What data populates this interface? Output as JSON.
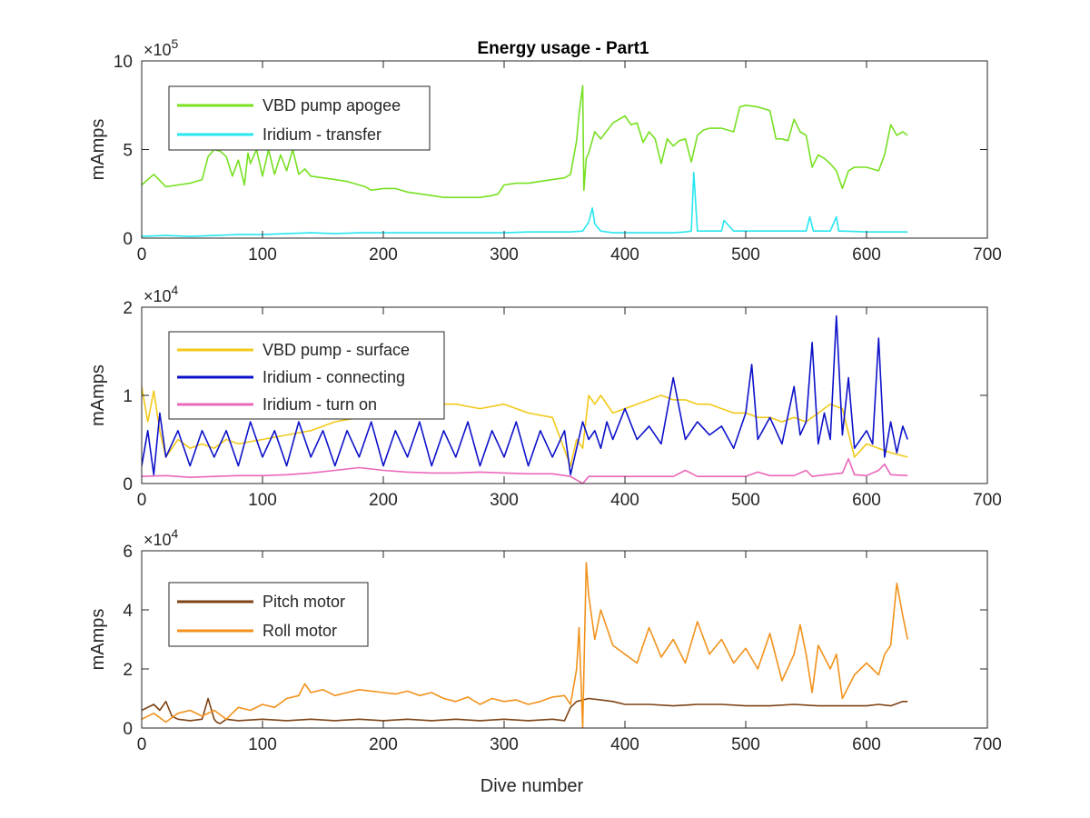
{
  "figure": {
    "title": "Energy usage - Part1"
  },
  "chart_data": [
    {
      "type": "line",
      "title": "Energy usage - Part1",
      "xlabel": "",
      "ylabel": "mAmps",
      "xlim": [
        0,
        700
      ],
      "ylim": [
        0,
        1000000
      ],
      "x_ticks": [
        0,
        100,
        200,
        300,
        400,
        500,
        600,
        700
      ],
      "x_tick_labels": [
        "0",
        "100",
        "200",
        "300",
        "400",
        "500",
        "600",
        "700"
      ],
      "y_ticks": [
        0,
        500000,
        1000000
      ],
      "y_tick_labels": [
        "0",
        "5",
        "10"
      ],
      "y_exponent": {
        "base": "×10",
        "power": "5"
      },
      "grid": false,
      "legend_position": "top-left",
      "series": [
        {
          "name": "VBD pump apogee",
          "color": "#77e021",
          "x": [
            0,
            10,
            20,
            30,
            40,
            50,
            55,
            60,
            65,
            70,
            75,
            80,
            85,
            88,
            90,
            95,
            100,
            105,
            110,
            115,
            120,
            125,
            130,
            135,
            140,
            150,
            160,
            170,
            180,
            185,
            190,
            200,
            210,
            220,
            240,
            250,
            260,
            280,
            290,
            295,
            300,
            310,
            320,
            330,
            340,
            350,
            355,
            360,
            362,
            365,
            366,
            368,
            370,
            375,
            380,
            390,
            400,
            405,
            410,
            415,
            420,
            425,
            430,
            435,
            440,
            445,
            450,
            455,
            460,
            465,
            470,
            480,
            490,
            495,
            500,
            510,
            520,
            525,
            530,
            535,
            540,
            545,
            550,
            555,
            560,
            565,
            570,
            575,
            580,
            585,
            590,
            600,
            610,
            615,
            620,
            625,
            630,
            634
          ],
          "y": [
            300000,
            360000,
            290000,
            300000,
            310000,
            330000,
            460000,
            500000,
            490000,
            460000,
            350000,
            440000,
            300000,
            480000,
            420000,
            500000,
            350000,
            500000,
            360000,
            470000,
            380000,
            500000,
            360000,
            390000,
            350000,
            340000,
            330000,
            320000,
            300000,
            290000,
            270000,
            280000,
            280000,
            260000,
            240000,
            230000,
            230000,
            230000,
            240000,
            250000,
            300000,
            310000,
            310000,
            320000,
            330000,
            340000,
            360000,
            550000,
            700000,
            860000,
            270000,
            450000,
            480000,
            600000,
            560000,
            650000,
            690000,
            640000,
            650000,
            540000,
            600000,
            560000,
            420000,
            560000,
            520000,
            550000,
            560000,
            430000,
            580000,
            610000,
            620000,
            620000,
            600000,
            740000,
            750000,
            740000,
            720000,
            560000,
            560000,
            550000,
            670000,
            600000,
            580000,
            400000,
            470000,
            450000,
            420000,
            380000,
            280000,
            380000,
            400000,
            400000,
            380000,
            470000,
            640000,
            580000,
            600000,
            580000
          ]
        },
        {
          "name": "Iridium - transfer",
          "color": "#27e6f0",
          "x": [
            0,
            20,
            40,
            60,
            80,
            100,
            120,
            140,
            160,
            180,
            200,
            220,
            240,
            260,
            280,
            300,
            320,
            340,
            355,
            365,
            370,
            373,
            375,
            380,
            390,
            400,
            420,
            440,
            450,
            455,
            457,
            460,
            470,
            480,
            482,
            490,
            500,
            520,
            540,
            550,
            553,
            556,
            560,
            570,
            575,
            577,
            580,
            600,
            620,
            634
          ],
          "y": [
            10000,
            15000,
            10000,
            15000,
            20000,
            20000,
            25000,
            30000,
            25000,
            30000,
            30000,
            30000,
            30000,
            30000,
            30000,
            30000,
            35000,
            35000,
            35000,
            40000,
            90000,
            170000,
            80000,
            40000,
            30000,
            30000,
            30000,
            30000,
            35000,
            40000,
            370000,
            40000,
            40000,
            40000,
            100000,
            40000,
            40000,
            40000,
            40000,
            40000,
            120000,
            40000,
            40000,
            40000,
            120000,
            40000,
            40000,
            35000,
            35000,
            35000
          ]
        }
      ]
    },
    {
      "type": "line",
      "title": "",
      "xlabel": "",
      "ylabel": "mAmps",
      "xlim": [
        0,
        700
      ],
      "ylim": [
        0,
        20000
      ],
      "x_ticks": [
        0,
        100,
        200,
        300,
        400,
        500,
        600,
        700
      ],
      "x_tick_labels": [
        "0",
        "100",
        "200",
        "300",
        "400",
        "500",
        "600",
        "700"
      ],
      "y_ticks": [
        0,
        10000,
        20000
      ],
      "y_tick_labels": [
        "0",
        "1",
        "2"
      ],
      "y_exponent": {
        "base": "×10",
        "power": "4"
      },
      "grid": false,
      "legend_position": "top-left",
      "series": [
        {
          "name": "VBD pump - surface",
          "color": "#f2c91a",
          "x": [
            0,
            5,
            10,
            15,
            20,
            30,
            40,
            50,
            60,
            70,
            80,
            100,
            120,
            140,
            160,
            180,
            200,
            220,
            240,
            260,
            280,
            300,
            320,
            340,
            355,
            360,
            365,
            370,
            375,
            380,
            390,
            400,
            410,
            420,
            430,
            440,
            450,
            460,
            470,
            480,
            490,
            500,
            510,
            520,
            530,
            540,
            550,
            560,
            570,
            580,
            590,
            600,
            610,
            620,
            634
          ],
          "y": [
            11000,
            7000,
            10500,
            6000,
            3000,
            5000,
            4000,
            4500,
            4000,
            5000,
            4500,
            5000,
            5500,
            6000,
            7000,
            7500,
            8000,
            8500,
            9000,
            9000,
            8500,
            9000,
            8000,
            7500,
            2000,
            5000,
            4000,
            10000,
            9000,
            10000,
            8000,
            8500,
            9000,
            9500,
            10000,
            9500,
            9500,
            9000,
            9000,
            8500,
            8000,
            8000,
            7500,
            7500,
            7000,
            7500,
            7000,
            8000,
            9000,
            8500,
            3000,
            4500,
            4000,
            3500,
            3000
          ]
        },
        {
          "name": "Iridium - connecting",
          "color": "#0d12c9",
          "x": [
            0,
            5,
            10,
            15,
            20,
            30,
            40,
            50,
            60,
            70,
            80,
            90,
            100,
            110,
            120,
            130,
            140,
            150,
            160,
            170,
            180,
            190,
            200,
            210,
            220,
            230,
            240,
            250,
            260,
            270,
            280,
            290,
            300,
            310,
            320,
            330,
            340,
            350,
            355,
            360,
            365,
            370,
            375,
            380,
            385,
            390,
            400,
            410,
            420,
            430,
            440,
            450,
            460,
            470,
            480,
            490,
            500,
            505,
            510,
            520,
            530,
            540,
            545,
            550,
            555,
            560,
            565,
            570,
            575,
            580,
            585,
            590,
            600,
            605,
            610,
            615,
            620,
            625,
            630,
            634
          ],
          "y": [
            2000,
            6000,
            1000,
            8000,
            3000,
            6000,
            2000,
            6000,
            3000,
            6000,
            2000,
            7000,
            3000,
            6000,
            2000,
            7000,
            3000,
            6000,
            2000,
            6000,
            3000,
            7000,
            2000,
            6000,
            3000,
            7000,
            2000,
            6000,
            3000,
            7000,
            2000,
            6000,
            3000,
            7000,
            2000,
            6000,
            3000,
            6000,
            1000,
            4000,
            7000,
            5000,
            6000,
            4000,
            7000,
            5000,
            8500,
            5000,
            6500,
            4500,
            12000,
            5000,
            7000,
            5500,
            6500,
            4000,
            8000,
            13500,
            5000,
            7500,
            4500,
            11000,
            5500,
            7000,
            16000,
            4500,
            8000,
            5000,
            19000,
            5500,
            12000,
            4000,
            6000,
            4500,
            16500,
            3000,
            7000,
            3500,
            6500,
            5000
          ]
        },
        {
          "name": "Iridium - turn on",
          "color": "#ea67b9",
          "x": [
            0,
            20,
            40,
            60,
            80,
            100,
            120,
            140,
            160,
            180,
            200,
            220,
            240,
            260,
            280,
            300,
            320,
            340,
            355,
            365,
            370,
            400,
            420,
            440,
            450,
            460,
            480,
            500,
            510,
            520,
            540,
            550,
            555,
            560,
            580,
            585,
            590,
            600,
            610,
            615,
            620,
            634
          ],
          "y": [
            800,
            900,
            700,
            800,
            900,
            900,
            1000,
            1200,
            1500,
            1800,
            1500,
            1300,
            1200,
            1200,
            1300,
            1200,
            1100,
            1100,
            800,
            0,
            800,
            800,
            800,
            800,
            1500,
            800,
            800,
            800,
            1300,
            900,
            900,
            1500,
            800,
            900,
            1200,
            2800,
            1000,
            900,
            1500,
            2200,
            1000,
            900
          ]
        }
      ]
    },
    {
      "type": "line",
      "title": "",
      "xlabel": "Dive number",
      "ylabel": "mAmps",
      "xlim": [
        0,
        700
      ],
      "ylim": [
        0,
        60000
      ],
      "x_ticks": [
        0,
        100,
        200,
        300,
        400,
        500,
        600,
        700
      ],
      "x_tick_labels": [
        "0",
        "100",
        "200",
        "300",
        "400",
        "500",
        "600",
        "700"
      ],
      "y_ticks": [
        0,
        20000,
        40000,
        60000
      ],
      "y_tick_labels": [
        "0",
        "2",
        "4",
        "6"
      ],
      "y_exponent": {
        "base": "×10",
        "power": "4"
      },
      "grid": false,
      "legend_position": "top-left",
      "series": [
        {
          "name": "Pitch motor",
          "color": "#7d4214",
          "x": [
            0,
            10,
            15,
            20,
            25,
            30,
            40,
            50,
            55,
            60,
            62,
            65,
            70,
            80,
            100,
            120,
            140,
            160,
            180,
            200,
            220,
            240,
            260,
            280,
            300,
            320,
            340,
            350,
            355,
            360,
            370,
            380,
            390,
            400,
            420,
            440,
            460,
            480,
            500,
            520,
            540,
            560,
            580,
            600,
            610,
            620,
            630,
            634
          ],
          "y": [
            6000,
            8000,
            6000,
            9000,
            4000,
            3000,
            2500,
            3000,
            10000,
            3000,
            2000,
            1500,
            3000,
            2500,
            3000,
            2500,
            3000,
            2500,
            3000,
            2500,
            3000,
            2500,
            3000,
            2500,
            3000,
            2500,
            3000,
            2500,
            7000,
            9000,
            10000,
            9500,
            9000,
            8000,
            8000,
            7500,
            8000,
            8000,
            7500,
            7500,
            8000,
            7500,
            7500,
            7500,
            8000,
            7500,
            9000,
            9000
          ]
        },
        {
          "name": "Roll motor",
          "color": "#f2921c",
          "x": [
            0,
            10,
            20,
            30,
            40,
            50,
            60,
            70,
            80,
            90,
            100,
            110,
            120,
            130,
            135,
            140,
            150,
            160,
            170,
            180,
            190,
            200,
            210,
            220,
            230,
            240,
            250,
            260,
            270,
            280,
            290,
            300,
            310,
            320,
            330,
            340,
            350,
            355,
            360,
            362,
            365,
            368,
            370,
            375,
            380,
            390,
            400,
            410,
            420,
            430,
            440,
            450,
            460,
            470,
            480,
            490,
            500,
            510,
            520,
            530,
            540,
            545,
            550,
            555,
            560,
            570,
            575,
            580,
            590,
            600,
            610,
            615,
            620,
            625,
            630,
            634
          ],
          "y": [
            3000,
            5000,
            2000,
            5000,
            6000,
            4000,
            6000,
            3000,
            7000,
            6000,
            8000,
            7000,
            10000,
            11000,
            15000,
            12000,
            13000,
            11000,
            12000,
            13000,
            12500,
            12000,
            11500,
            12500,
            11000,
            12000,
            10000,
            9000,
            10500,
            8000,
            10000,
            9000,
            9500,
            8000,
            9000,
            10500,
            11000,
            8000,
            20000,
            34000,
            0,
            56000,
            45000,
            30000,
            40000,
            28000,
            25000,
            22000,
            34000,
            24000,
            30000,
            22000,
            36000,
            25000,
            30000,
            22000,
            27000,
            20000,
            32000,
            16000,
            25000,
            35000,
            25000,
            12000,
            28000,
            20000,
            25000,
            10000,
            18000,
            22000,
            18000,
            25000,
            28000,
            49000,
            38000,
            30000
          ]
        }
      ]
    }
  ]
}
